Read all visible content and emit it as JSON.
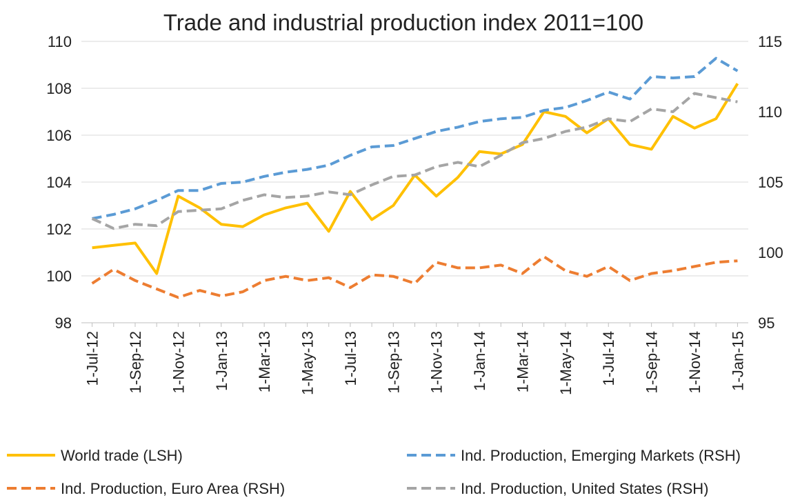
{
  "chart_data": {
    "type": "line",
    "title": "Trade and industrial production index 2011=100",
    "categories": [
      "1-Jul-12",
      null,
      "1-Sep-12",
      null,
      "1-Nov-12",
      null,
      "1-Jan-13",
      null,
      "1-Mar-13",
      null,
      "1-May-13",
      null,
      "1-Jul-13",
      null,
      "1-Sep-13",
      null,
      "1-Nov-13",
      null,
      "1-Jan-14",
      null,
      "1-Mar-14",
      null,
      "1-May-14",
      null,
      "1-Jul-14",
      null,
      "1-Sep-14",
      null,
      "1-Nov-14",
      null,
      "1-Jan-15"
    ],
    "ylim": [
      98,
      110
    ],
    "yticks": [
      98,
      100,
      102,
      104,
      106,
      108,
      110
    ],
    "y2lim": [
      95,
      115
    ],
    "y2ticks": [
      95,
      100,
      105,
      110,
      115
    ],
    "grid": true,
    "legend": "bottom",
    "series": [
      {
        "name": "World trade (LSH)",
        "color": "#FFC000",
        "style": "solid",
        "axis": "y",
        "values": [
          101.2,
          101.3,
          101.4,
          100.1,
          103.4,
          102.9,
          102.2,
          102.1,
          102.6,
          102.9,
          103.1,
          101.9,
          103.6,
          102.4,
          103.0,
          104.3,
          103.4,
          104.2,
          105.3,
          105.2,
          105.6,
          107.0,
          106.8,
          106.1,
          106.7,
          105.6,
          105.4,
          106.8,
          106.3,
          106.7,
          108.2
        ]
      },
      {
        "name": "Ind. Production, Emerging Markets (RSH)",
        "color": "#5B9BD5",
        "style": "dashed",
        "axis": "y2",
        "values": [
          102.4,
          102.7,
          103.1,
          103.7,
          104.4,
          104.4,
          104.9,
          105.0,
          105.4,
          105.7,
          105.9,
          106.2,
          106.9,
          107.5,
          107.6,
          108.1,
          108.6,
          108.9,
          109.3,
          109.5,
          109.6,
          110.1,
          110.3,
          110.8,
          111.4,
          110.9,
          112.5,
          112.4,
          112.5,
          113.8,
          112.9
        ]
      },
      {
        "name": "Ind. Production, Euro Area (RSH)",
        "color": "#ED7D31",
        "style": "dashed",
        "axis": "y2",
        "values": [
          97.8,
          98.8,
          98.0,
          97.4,
          96.8,
          97.3,
          96.9,
          97.2,
          98.0,
          98.3,
          98.0,
          98.2,
          97.5,
          98.4,
          98.3,
          97.8,
          99.3,
          98.9,
          98.9,
          99.1,
          98.5,
          99.7,
          98.7,
          98.3,
          99.0,
          98.0,
          98.5,
          98.7,
          99.0,
          99.3,
          99.4
        ]
      },
      {
        "name": "Ind. Production, United States (RSH)",
        "color": "#A5A5A5",
        "style": "dashed",
        "axis": "y2",
        "values": [
          102.4,
          101.7,
          102.0,
          101.9,
          102.9,
          103.0,
          103.1,
          103.7,
          104.1,
          103.9,
          104.0,
          104.3,
          104.1,
          104.8,
          105.4,
          105.5,
          106.1,
          106.4,
          106.1,
          106.9,
          107.8,
          108.1,
          108.6,
          108.9,
          109.5,
          109.3,
          110.2,
          110.0,
          111.3,
          111.0,
          110.7
        ]
      }
    ]
  }
}
